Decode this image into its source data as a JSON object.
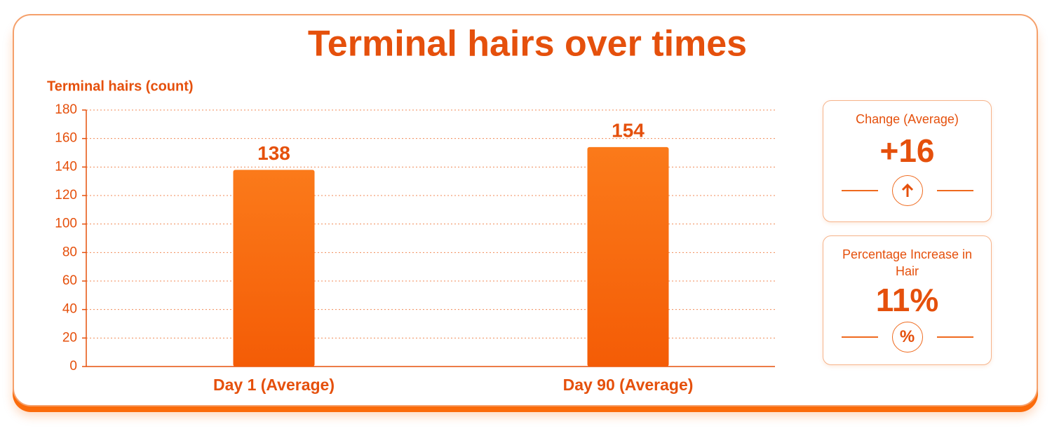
{
  "chart_data": {
    "type": "bar",
    "title": "Terminal hairs over times",
    "y_label": "Terminal hairs (count)",
    "categories": [
      "Day 1 (Average)",
      "Day 90 (Average)"
    ],
    "values": [
      138,
      154
    ],
    "color": "#fb6b0a",
    "ylim": [
      0,
      180
    ],
    "yticks": [
      0,
      20,
      40,
      60,
      80,
      100,
      120,
      140,
      160,
      180
    ],
    "grid": true
  },
  "cards": [
    {
      "title": "Change (Average)",
      "value": "+16"
    },
    {
      "title": "Percentage Increase in Hair",
      "value": "11%",
      "icon": "%"
    }
  ]
}
